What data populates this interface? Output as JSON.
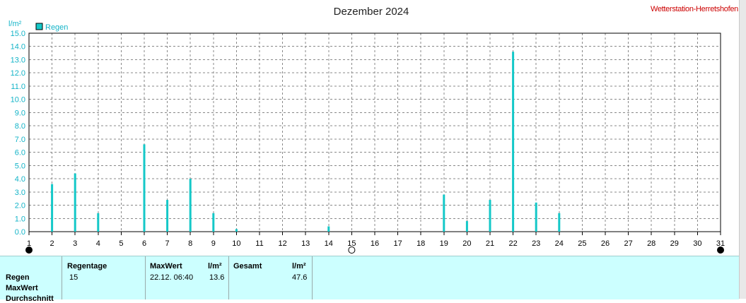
{
  "header": {
    "title": "Dezember 2024",
    "station": "Wetterstation-Herretshofen"
  },
  "chart_data": {
    "type": "bar",
    "title": "Dezember 2024",
    "ylabel": "l/m²",
    "ylim": [
      0,
      15
    ],
    "yticks": [
      "0.0",
      "1.0",
      "2.0",
      "3.0",
      "4.0",
      "5.0",
      "6.0",
      "7.0",
      "8.0",
      "9.0",
      "10.0",
      "11.0",
      "12.0",
      "13.0",
      "14.0",
      "15.0"
    ],
    "categories": [
      "1",
      "2",
      "3",
      "4",
      "5",
      "6",
      "7",
      "8",
      "9",
      "10",
      "11",
      "12",
      "13",
      "14",
      "15",
      "16",
      "17",
      "18",
      "19",
      "20",
      "21",
      "22",
      "23",
      "24",
      "25",
      "26",
      "27",
      "28",
      "29",
      "30",
      "31"
    ],
    "series": [
      {
        "name": "Regen",
        "values": [
          0,
          3.6,
          4.4,
          1.4,
          0,
          6.6,
          2.4,
          4.0,
          1.4,
          0.2,
          0,
          0,
          0,
          0.4,
          0,
          0,
          0,
          0,
          2.8,
          0.8,
          2.4,
          13.6,
          2.2,
          1.4,
          0,
          0,
          0,
          0,
          0,
          0,
          0
        ],
        "color": "#14c8c8"
      }
    ],
    "grid": true,
    "legend": "top-left",
    "moon_phases": [
      {
        "day": 1,
        "phase": "new-moon"
      },
      {
        "day": 15,
        "phase": "full-moon"
      },
      {
        "day": 31,
        "phase": "new-moon"
      }
    ]
  },
  "table": {
    "rows": [
      "Regen",
      "MaxWert",
      "Durchschnitt"
    ],
    "regentage_header": "Regentage",
    "regentage_value": "15",
    "maxwert_header": "MaxWert",
    "maxwert_unit": "l/m²",
    "maxwert_datetime": "22.12.  06:40",
    "maxwert_value": "13.6",
    "gesamt_header": "Gesamt",
    "gesamt_unit": "l/m²",
    "gesamt_value": "47.6"
  },
  "colors": {
    "rain": "#14c8c8",
    "axis_text": "#14b4c8",
    "station": "#cc0000",
    "table_bg": "#ccffff"
  }
}
